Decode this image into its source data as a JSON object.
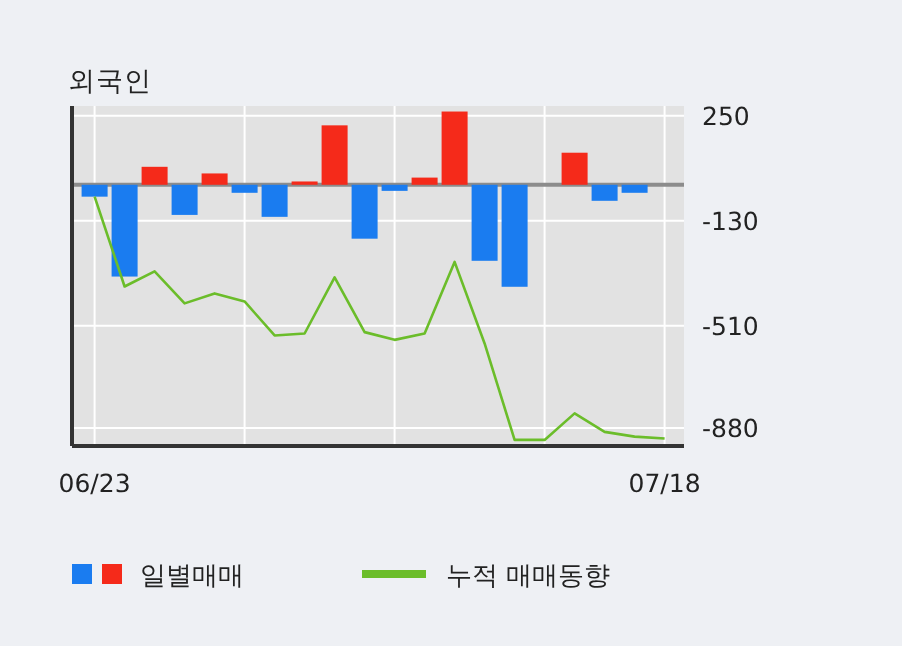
{
  "chart_data": {
    "type": "bar",
    "title": "외국인",
    "categories": [
      "06/23",
      null,
      null,
      null,
      null,
      null,
      null,
      null,
      null,
      null,
      null,
      null,
      null,
      null,
      null,
      null,
      null,
      null,
      null,
      "07/18"
    ],
    "series": [
      {
        "name": "일별매매",
        "colors": [
          "#1a7cf0",
          "#1a7cf0",
          "#f52a1a",
          "#1a7cf0",
          "#f52a1a",
          "#1a7cf0",
          "#1a7cf0",
          "#f52a1a",
          "#f52a1a",
          "#1a7cf0",
          "#1a7cf0",
          "#f52a1a",
          "#f52a1a",
          "#1a7cf0",
          "#1a7cf0",
          "#1a7cf0",
          "#f52a1a",
          "#1a7cf0",
          "#1a7cf0",
          "#1a7cf0"
        ],
        "values": [
          -43,
          -332,
          65,
          -109,
          41,
          -29,
          -116,
          12,
          215,
          -195,
          -22,
          26,
          265,
          -275,
          -369,
          0,
          116,
          -58,
          -29,
          0
        ]
      },
      {
        "name": "누적 매매동향",
        "type": "line",
        "color": "#6bbd2a",
        "values": [
          -43,
          -368,
          -313,
          -429,
          -393,
          -422,
          -545,
          -538,
          -335,
          -533,
          -561,
          -538,
          -279,
          -574,
          -923,
          -923,
          -827,
          -894,
          -911,
          -918
        ]
      }
    ],
    "ylim": [
      -945,
      285
    ],
    "yticks": [
      250,
      -130,
      -510,
      -880
    ],
    "ref_lines": [
      {
        "axis": "y",
        "value": 0,
        "color": "#8c8c8c"
      }
    ],
    "grid": true,
    "legend": "bottom"
  }
}
